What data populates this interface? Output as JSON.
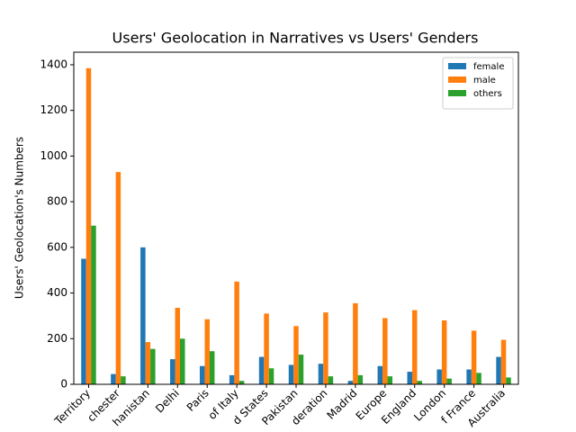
{
  "chart_data": {
    "type": "bar",
    "title": "Users' Geolocation in Narratives vs Users' Genders",
    "y_label": "Users' Geolocation's Numbers",
    "categories": [
      "Territory",
      "chester",
      "hanistan",
      "Delhi",
      "Paris",
      "of Italy",
      "d States",
      "Pakistan",
      "deration",
      "Madrid",
      "Europe",
      "England",
      "London",
      "f France",
      "Australia"
    ],
    "series": [
      {
        "name": "female",
        "color": "#1f77b4",
        "values": [
          550,
          45,
          600,
          110,
          80,
          40,
          120,
          85,
          90,
          15,
          80,
          55,
          65,
          65,
          120
        ]
      },
      {
        "name": "male",
        "color": "#ff7f0e",
        "values": [
          1385,
          930,
          185,
          335,
          285,
          450,
          310,
          255,
          315,
          355,
          290,
          325,
          280,
          235,
          195
        ]
      },
      {
        "name": "others",
        "color": "#2ca02c",
        "values": [
          695,
          35,
          155,
          200,
          145,
          15,
          70,
          130,
          35,
          40,
          35,
          15,
          25,
          50,
          30
        ]
      }
    ],
    "ylim": [
      0,
      1455
    ],
    "yticks": [
      0,
      200,
      400,
      600,
      800,
      1000,
      1200,
      1400
    ],
    "legend": "upper right"
  }
}
